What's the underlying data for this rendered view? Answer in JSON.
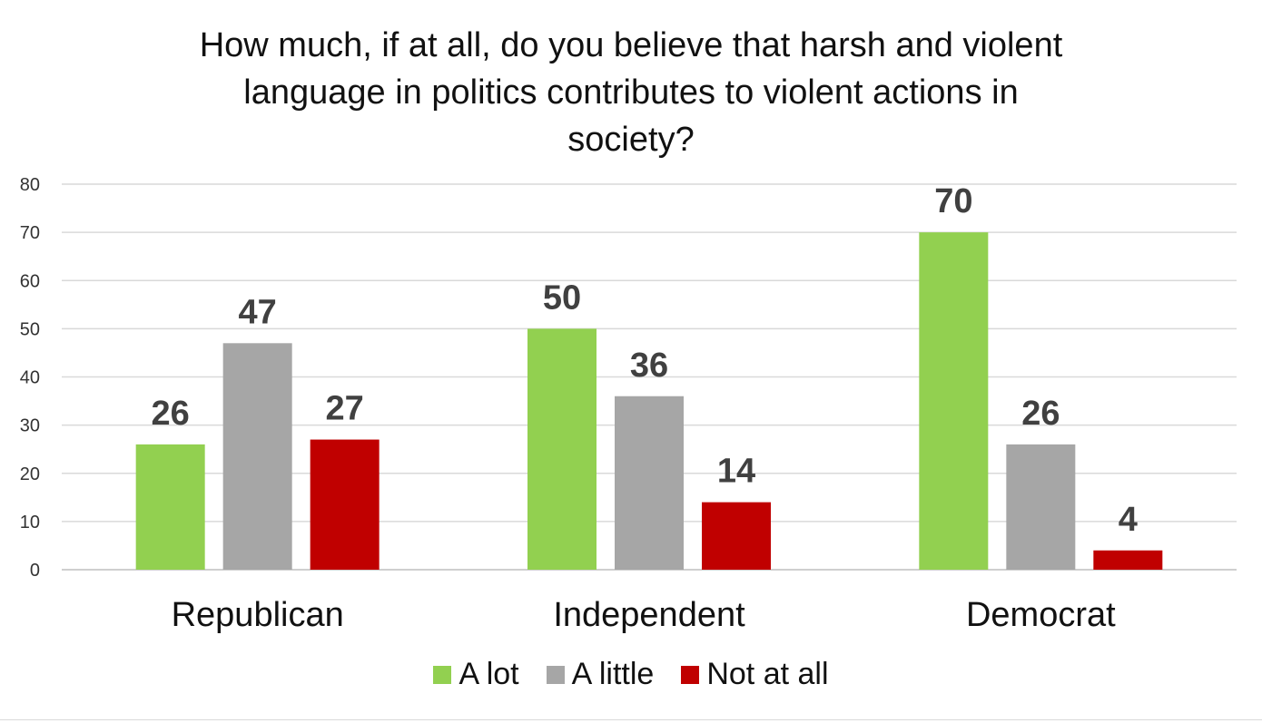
{
  "chart_data": {
    "type": "bar",
    "title_lines": [
      "How much, if at all, do you believe that harsh and violent",
      "language in politics contributes to violent actions in",
      "society?"
    ],
    "categories": [
      "Republican",
      "Independent",
      "Democrat"
    ],
    "series": [
      {
        "name": "A lot",
        "color": "#92d050",
        "values": [
          26,
          50,
          70
        ]
      },
      {
        "name": "A little",
        "color": "#a6a6a6",
        "values": [
          47,
          36,
          26
        ]
      },
      {
        "name": "Not at all",
        "color": "#c00000",
        "values": [
          27,
          14,
          4
        ]
      }
    ],
    "ylim": [
      0,
      80
    ],
    "yticks": [
      0,
      10,
      20,
      30,
      40,
      50,
      60,
      70,
      80
    ],
    "grid": true,
    "legend_position": "bottom"
  }
}
